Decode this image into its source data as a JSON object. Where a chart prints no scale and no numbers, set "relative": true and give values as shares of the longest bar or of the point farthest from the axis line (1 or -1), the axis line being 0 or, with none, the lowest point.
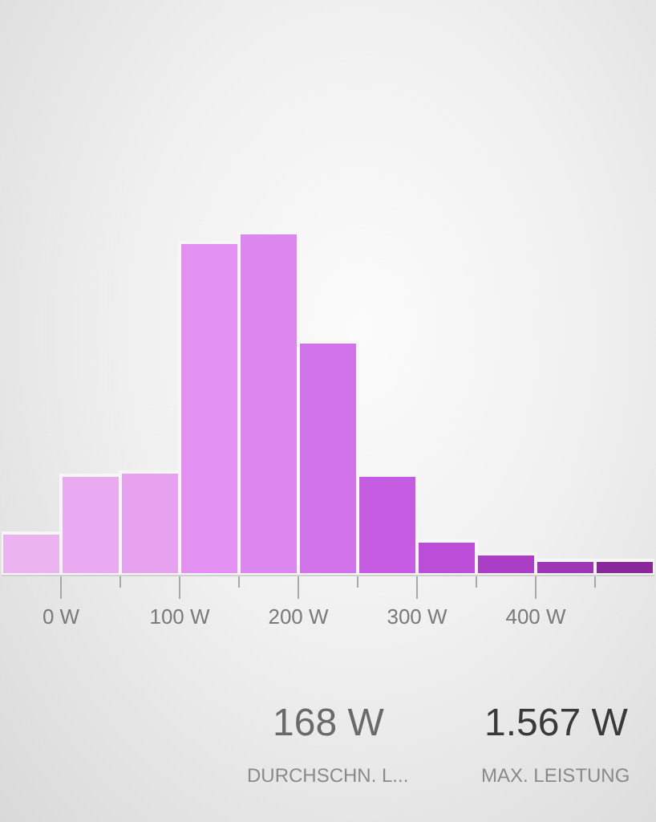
{
  "chart_data": {
    "type": "bar",
    "relative": true,
    "x": [
      -25,
      25,
      75,
      125,
      175,
      225,
      275,
      325,
      375,
      425,
      475
    ],
    "values": [
      0.12,
      0.29,
      0.3,
      0.97,
      1,
      0.68,
      0.29,
      0.1,
      0.06,
      0.04,
      0.04
    ],
    "colors": [
      "#ebb4f0",
      "#eaaaf1",
      "#e6a2ef",
      "#e291f2",
      "#dc86ef",
      "#d272ea",
      "#c65ce1",
      "#bb4dd8",
      "#aa3fc6",
      "#9c36b4",
      "#88289a"
    ],
    "xlim": [
      -50,
      500
    ],
    "xticks": [
      {
        "value": 0,
        "label": "0 W"
      },
      {
        "value": 50,
        "label": null
      },
      {
        "value": 100,
        "label": "100 W"
      },
      {
        "value": 150,
        "label": null
      },
      {
        "value": 200,
        "label": "200 W"
      },
      {
        "value": 250,
        "label": null
      },
      {
        "value": 300,
        "label": "300 W"
      },
      {
        "value": 350,
        "label": null
      },
      {
        "value": 400,
        "label": "400 W"
      },
      {
        "value": 450,
        "label": null
      }
    ],
    "annotations": [
      "168 W",
      "DURCHSCHN. L...",
      "1.567 W",
      "MAX. LEISTUNG"
    ]
  }
}
